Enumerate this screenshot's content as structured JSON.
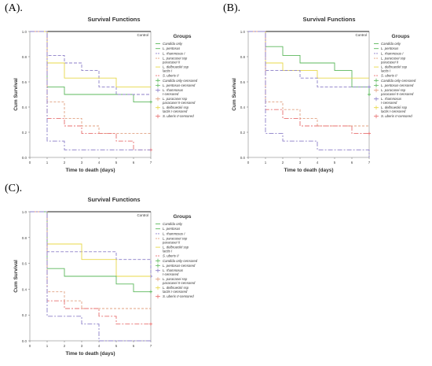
{
  "chart_data": [
    {
      "panel": "(A).",
      "type": "line",
      "title": "Survival Functions",
      "xlabel": "Time to death (days)",
      "ylabel": "Cum Survival",
      "control_label": "Control",
      "xlim": [
        0,
        7
      ],
      "ylim": [
        0,
        1.0
      ],
      "xticks": [
        0,
        1,
        2,
        3,
        4,
        5,
        6,
        7
      ],
      "yticks": [
        0.0,
        0.2,
        0.4,
        0.6,
        0.8,
        1.0
      ],
      "legend_title": "Groups",
      "legend": [
        {
          "label": "Candida only",
          "color": "#5cb85c",
          "marker": "solid"
        },
        {
          "label": "L. pentosus",
          "color": "#5cb85c",
          "marker": "solid"
        },
        {
          "label": "L. rhamnosus I",
          "color": "#8c7fc8",
          "marker": "dash"
        },
        {
          "label": "L. paracasei ssp paracasei II",
          "color": "#e0a080",
          "marker": "dash"
        },
        {
          "label": "L. delbrueckii ssp lactis I",
          "color": "#e8d84a",
          "marker": "solid"
        },
        {
          "label": "S. uberis II",
          "color": "#e87070",
          "marker": "dash"
        },
        {
          "label": "Candida only-censored",
          "color": "#5cb85c",
          "marker": "plus"
        },
        {
          "label": "L. pentosus-censored",
          "color": "#5cb85c",
          "marker": "plus"
        },
        {
          "label": "L. rhamnosus I-censored",
          "color": "#8c7fc8",
          "marker": "plus"
        },
        {
          "label": "L. paracasei ssp paracasei II-censored",
          "color": "#e0a080",
          "marker": "plus"
        },
        {
          "label": "L. delbrueckii ssp lactis I-censored",
          "color": "#e8d84a",
          "marker": "plus"
        },
        {
          "label": "S. uberis II-censored",
          "color": "#e87070",
          "marker": "plus"
        }
      ],
      "series": [
        {
          "color": "#1f1f1f",
          "dash": "",
          "x": [
            0,
            7
          ],
          "y": [
            1.0,
            1.0
          ]
        },
        {
          "color": "#5cb85c",
          "dash": "",
          "x": [
            0,
            1,
            2,
            6,
            7
          ],
          "y": [
            1.0,
            0.56,
            0.5,
            0.44,
            0.44
          ],
          "censor": [
            7,
            0.44
          ]
        },
        {
          "color": "#8c7fc8",
          "dash": "4,2",
          "x": [
            0,
            1,
            2,
            3,
            4,
            5,
            6,
            7
          ],
          "y": [
            1.0,
            0.81,
            0.75,
            0.69,
            0.56,
            0.5,
            0.5,
            0.5
          ]
        },
        {
          "color": "#e8d84a",
          "dash": "",
          "x": [
            0,
            1,
            2,
            5,
            7
          ],
          "y": [
            1.0,
            0.75,
            0.63,
            0.56,
            0.56
          ]
        },
        {
          "color": "#e0a080",
          "dash": "3,2",
          "x": [
            0,
            1,
            2,
            3,
            4,
            7
          ],
          "y": [
            1.0,
            0.44,
            0.31,
            0.25,
            0.19,
            0.19
          ]
        },
        {
          "color": "#e87070",
          "dash": "6,2,2,2",
          "x": [
            0,
            1,
            2,
            3,
            4,
            5,
            6,
            7
          ],
          "y": [
            1.0,
            0.31,
            0.25,
            0.19,
            0.19,
            0.13,
            0.06,
            0.06
          ],
          "censor": [
            7,
            0.06
          ]
        },
        {
          "color": "#8c7fc8",
          "dash": "6,2,2,2",
          "x": [
            0,
            1,
            2,
            4,
            7
          ],
          "y": [
            1.0,
            0.13,
            0.06,
            0.06,
            0.06
          ]
        }
      ]
    },
    {
      "panel": "(B).",
      "type": "line",
      "title": "Survival Functions",
      "xlabel": "Time to death (days)",
      "ylabel": "Cum Survival",
      "control_label": "Control",
      "xlim": [
        0,
        7
      ],
      "ylim": [
        0,
        1.0
      ],
      "xticks": [
        0,
        1,
        2,
        3,
        4,
        5,
        6,
        7
      ],
      "yticks": [
        0.0,
        0.2,
        0.4,
        0.6,
        0.8,
        1.0
      ],
      "legend_title": "Groups",
      "legend": [
        {
          "label": "Candida only",
          "color": "#5cb85c",
          "marker": "solid"
        },
        {
          "label": "L. pentosus",
          "color": "#5cb85c",
          "marker": "solid"
        },
        {
          "label": "L. rhamnosus I",
          "color": "#8c7fc8",
          "marker": "dash"
        },
        {
          "label": "L. paracasei ssp paracasei II",
          "color": "#e0a080",
          "marker": "dash"
        },
        {
          "label": "L. delbrueckii ssp lactis I",
          "color": "#e8d84a",
          "marker": "solid"
        },
        {
          "label": "S. uberis II",
          "color": "#e87070",
          "marker": "dash"
        },
        {
          "label": "Candida only-censored",
          "color": "#5cb85c",
          "marker": "plus"
        },
        {
          "label": "L. pentosus-censored",
          "color": "#5cb85c",
          "marker": "plus"
        },
        {
          "label": "L. paracasei ssp paracasei II-censored",
          "color": "#e0a080",
          "marker": "plus"
        },
        {
          "label": "L. rhamnosus I-censored",
          "color": "#8c7fc8",
          "marker": "plus"
        },
        {
          "label": "L. delbrueckii ssp lactis I-censored",
          "color": "#e8d84a",
          "marker": "plus"
        },
        {
          "label": "S. uberis II-censored",
          "color": "#e87070",
          "marker": "plus"
        }
      ],
      "series": [
        {
          "color": "#1f1f1f",
          "dash": "",
          "x": [
            0,
            7
          ],
          "y": [
            1.0,
            1.0
          ]
        },
        {
          "color": "#5cb85c",
          "dash": "",
          "x": [
            0,
            1,
            2,
            3,
            5,
            6,
            7
          ],
          "y": [
            1.0,
            0.88,
            0.81,
            0.75,
            0.69,
            0.56,
            0.5
          ],
          "censor": [
            7,
            0.5
          ]
        },
        {
          "color": "#e8d84a",
          "dash": "",
          "x": [
            0,
            1,
            2,
            4,
            7
          ],
          "y": [
            1.0,
            0.75,
            0.69,
            0.63,
            0.63
          ]
        },
        {
          "color": "#8c7fc8",
          "dash": "4,2",
          "x": [
            0,
            1,
            3,
            4,
            6,
            7
          ],
          "y": [
            1.0,
            0.69,
            0.63,
            0.56,
            0.56,
            0.56
          ],
          "censor": [
            7,
            0.56
          ]
        },
        {
          "color": "#e0a080",
          "dash": "3,2",
          "x": [
            0,
            1,
            2,
            3,
            4,
            7
          ],
          "y": [
            1.0,
            0.44,
            0.38,
            0.31,
            0.25,
            0.25
          ]
        },
        {
          "color": "#e87070",
          "dash": "6,2,2,2",
          "x": [
            0,
            1,
            2,
            3,
            4,
            6,
            7
          ],
          "y": [
            1.0,
            0.38,
            0.31,
            0.25,
            0.25,
            0.19,
            0.19
          ],
          "censor": [
            7,
            0.19
          ]
        },
        {
          "color": "#8c7fc8",
          "dash": "6,2,2,2",
          "x": [
            0,
            1,
            2,
            4,
            6,
            7
          ],
          "y": [
            1.0,
            0.19,
            0.13,
            0.06,
            0.06,
            0.0
          ]
        }
      ]
    },
    {
      "panel": "(C).",
      "type": "line",
      "title": "Survival Functions",
      "xlabel": "Time to death (days)",
      "ylabel": "Cum Survival",
      "control_label": "Control",
      "xlim": [
        0,
        7
      ],
      "ylim": [
        0,
        1.0
      ],
      "xticks": [
        0,
        1,
        2,
        3,
        4,
        5,
        6,
        7
      ],
      "yticks": [
        0.0,
        0.2,
        0.4,
        0.6,
        0.8,
        1.0
      ],
      "legend_title": "Groups",
      "legend": [
        {
          "label": "Candida only",
          "color": "#5cb85c",
          "marker": "solid"
        },
        {
          "label": "L. pentosus",
          "color": "#5cb85c",
          "marker": "solid"
        },
        {
          "label": "L. rhamnosus I",
          "color": "#8c7fc8",
          "marker": "dash"
        },
        {
          "label": "L. paracasei ssp paracasei II",
          "color": "#e0a080",
          "marker": "dash"
        },
        {
          "label": "L. delbrueckii ssp lactis I",
          "color": "#e8d84a",
          "marker": "solid"
        },
        {
          "label": "S. uberis II",
          "color": "#e87070",
          "marker": "dash"
        },
        {
          "label": "Candida only-censored",
          "color": "#5cb85c",
          "marker": "plus"
        },
        {
          "label": "L. pentosus-censored",
          "color": "#5cb85c",
          "marker": "plus"
        },
        {
          "label": "L. rhamnosus I-censored",
          "color": "#8c7fc8",
          "marker": "plus"
        },
        {
          "label": "L. paracasei ssp paracasei II-censored",
          "color": "#e0a080",
          "marker": "plus"
        },
        {
          "label": "L. delbrueckii ssp lactis I-censored",
          "color": "#e8d84a",
          "marker": "plus"
        },
        {
          "label": "S. uberis II-censored",
          "color": "#e87070",
          "marker": "plus"
        }
      ],
      "series": [
        {
          "color": "#1f1f1f",
          "dash": "",
          "x": [
            0,
            7
          ],
          "y": [
            1.0,
            1.0
          ]
        },
        {
          "color": "#8c7fc8",
          "dash": "4,2",
          "x": [
            0,
            1,
            5,
            7
          ],
          "y": [
            1.0,
            0.69,
            0.63,
            0.5
          ],
          "censor": [
            7,
            0.5
          ]
        },
        {
          "color": "#e8d84a",
          "dash": "",
          "x": [
            0,
            1,
            3,
            5,
            7
          ],
          "y": [
            1.0,
            0.75,
            0.63,
            0.5,
            0.5
          ]
        },
        {
          "color": "#5cb85c",
          "dash": "",
          "x": [
            0,
            1,
            2,
            5,
            6,
            7
          ],
          "y": [
            1.0,
            0.56,
            0.5,
            0.44,
            0.38,
            0.38
          ],
          "censor": [
            7,
            0.38
          ]
        },
        {
          "color": "#e0a080",
          "dash": "3,2",
          "x": [
            0,
            1,
            2,
            3,
            7
          ],
          "y": [
            1.0,
            0.38,
            0.31,
            0.25,
            0.25
          ]
        },
        {
          "color": "#e87070",
          "dash": "6,2,2,2",
          "x": [
            0,
            1,
            2,
            4,
            5,
            7
          ],
          "y": [
            1.0,
            0.31,
            0.25,
            0.19,
            0.13,
            0.13
          ],
          "censor": [
            7,
            0.13
          ]
        },
        {
          "color": "#8c7fc8",
          "dash": "6,2,2,2",
          "x": [
            0,
            1,
            3,
            4,
            7
          ],
          "y": [
            1.0,
            0.19,
            0.13,
            0.0,
            0.0
          ]
        }
      ]
    }
  ]
}
